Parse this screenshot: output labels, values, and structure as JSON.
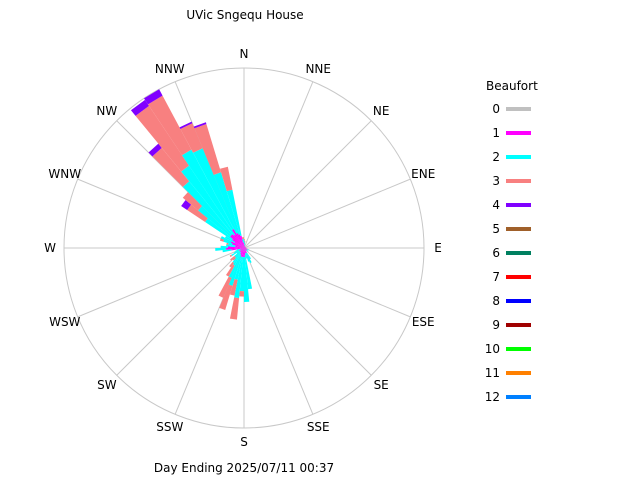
{
  "chart_data": {
    "type": "windrose",
    "title": "UVic Sngequ House",
    "footer": "Day Ending 2025/07/11 00:37",
    "directions": [
      "N",
      "NNE",
      "NE",
      "ENE",
      "E",
      "ESE",
      "SE",
      "SSE",
      "S",
      "SSW",
      "SW",
      "WSW",
      "W",
      "WNW",
      "NW",
      "NNW"
    ],
    "legend": {
      "title": "Beaufort",
      "classes": [
        {
          "label": "0",
          "color": "#c0c0c0"
        },
        {
          "label": "1",
          "color": "#ff00ff"
        },
        {
          "label": "2",
          "color": "#00ffff"
        },
        {
          "label": "3",
          "color": "#f88080"
        },
        {
          "label": "4",
          "color": "#8000ff"
        },
        {
          "label": "5",
          "color": "#a0602a"
        },
        {
          "label": "6",
          "color": "#008060"
        },
        {
          "label": "7",
          "color": "#ff0000"
        },
        {
          "label": "8",
          "color": "#0000ff"
        },
        {
          "label": "9",
          "color": "#a00000"
        },
        {
          "label": "10",
          "color": "#00ff00"
        },
        {
          "label": "11",
          "color": "#ff8000"
        },
        {
          "label": "12",
          "color": "#0080ff"
        }
      ]
    },
    "max_radius": 1.0,
    "bins_per_direction": 4,
    "note": "Each direction sector is subdivided into 4 sub-bins (offsets in degrees relative to the direction center). Each sub-bin gives cumulative radius (fraction of outer ring) for each Beaufort class 0..4.",
    "sub_bin_offsets": [
      -8.4375,
      -2.8125,
      2.8125,
      8.4375
    ],
    "sectors": [
      {
        "dir": "N",
        "bins": [
          [
            0,
            0.03,
            0.05,
            0.06,
            0.06
          ],
          [
            0,
            0.03,
            0.05,
            0.06,
            0.06
          ],
          [
            0,
            0.02,
            0.04,
            0.05,
            0.05
          ],
          [
            0,
            0.02,
            0.03,
            0.04,
            0.04
          ]
        ]
      },
      {
        "dir": "NNE",
        "bins": [
          [
            0,
            0.01,
            0.02,
            0.02,
            0.02
          ],
          [
            0,
            0.01,
            0.02,
            0.02,
            0.02
          ],
          [
            0,
            0.01,
            0.01,
            0.01,
            0.01
          ],
          [
            0,
            0.01,
            0.01,
            0.01,
            0.01
          ]
        ]
      },
      {
        "dir": "NE",
        "bins": [
          [
            0,
            0.01,
            0.01,
            0.01,
            0.01
          ],
          [
            0,
            0.01,
            0.01,
            0.01,
            0.01
          ],
          [
            0,
            0.01,
            0.01,
            0.01,
            0.01
          ],
          [
            0,
            0.01,
            0.01,
            0.01,
            0.01
          ]
        ]
      },
      {
        "dir": "ENE",
        "bins": [
          [
            0,
            0.01,
            0.01,
            0.01,
            0.01
          ],
          [
            0,
            0.01,
            0.01,
            0.01,
            0.01
          ],
          [
            0,
            0.01,
            0.01,
            0.01,
            0.01
          ],
          [
            0,
            0.01,
            0.01,
            0.01,
            0.01
          ]
        ]
      },
      {
        "dir": "E",
        "bins": [
          [
            0,
            0.01,
            0.01,
            0.01,
            0.01
          ],
          [
            0,
            0.01,
            0.01,
            0.01,
            0.01
          ],
          [
            0,
            0.01,
            0.01,
            0.01,
            0.01
          ],
          [
            0,
            0.01,
            0.01,
            0.01,
            0.01
          ]
        ]
      },
      {
        "dir": "ESE",
        "bins": [
          [
            0,
            0.02,
            0.02,
            0.02,
            0.02
          ],
          [
            0,
            0.02,
            0.03,
            0.03,
            0.03
          ],
          [
            0,
            0.02,
            0.02,
            0.02,
            0.02
          ],
          [
            0,
            0.01,
            0.02,
            0.02,
            0.02
          ]
        ]
      },
      {
        "dir": "SE",
        "bins": [
          [
            0,
            0.02,
            0.03,
            0.03,
            0.03
          ],
          [
            0,
            0.02,
            0.03,
            0.03,
            0.03
          ],
          [
            0,
            0.02,
            0.02,
            0.02,
            0.02
          ],
          [
            0,
            0.01,
            0.02,
            0.02,
            0.02
          ]
        ]
      },
      {
        "dir": "SSE",
        "bins": [
          [
            0,
            0.03,
            0.07,
            0.07,
            0.07
          ],
          [
            0,
            0.03,
            0.09,
            0.09,
            0.09
          ],
          [
            0,
            0.03,
            0.08,
            0.08,
            0.08
          ],
          [
            0,
            0.03,
            0.06,
            0.06,
            0.06
          ]
        ]
      },
      {
        "dir": "S",
        "bins": [
          [
            0,
            0.04,
            0.23,
            0.23,
            0.23
          ],
          [
            0,
            0.05,
            0.3,
            0.3,
            0.3
          ],
          [
            0,
            0.05,
            0.24,
            0.27,
            0.27
          ],
          [
            0,
            0.05,
            0.28,
            0.4,
            0.4
          ]
        ]
      },
      {
        "dir": "SSW",
        "bins": [
          [
            0,
            0.05,
            0.18,
            0.27,
            0.27
          ],
          [
            0,
            0.05,
            0.22,
            0.36,
            0.36
          ],
          [
            0,
            0.04,
            0.18,
            0.3,
            0.3
          ],
          [
            0,
            0.04,
            0.11,
            0.18,
            0.18
          ]
        ]
      },
      {
        "dir": "SW",
        "bins": [
          [
            0,
            0.03,
            0.1,
            0.13,
            0.13
          ],
          [
            0,
            0.03,
            0.07,
            0.09,
            0.09
          ],
          [
            0,
            0.03,
            0.07,
            0.1,
            0.1
          ],
          [
            0,
            0.02,
            0.05,
            0.05,
            0.05
          ]
        ]
      },
      {
        "dir": "WSW",
        "bins": [
          [
            0,
            0.03,
            0.08,
            0.09,
            0.09
          ],
          [
            0,
            0.03,
            0.06,
            0.06,
            0.06
          ],
          [
            0,
            0.02,
            0.05,
            0.05,
            0.05
          ],
          [
            0,
            0.02,
            0.04,
            0.04,
            0.04
          ]
        ]
      },
      {
        "dir": "W",
        "bins": [
          [
            0,
            0.07,
            0.12,
            0.12,
            0.12
          ],
          [
            0,
            0.1,
            0.16,
            0.16,
            0.16
          ],
          [
            0,
            0.09,
            0.13,
            0.13,
            0.13
          ],
          [
            0,
            0.05,
            0.1,
            0.1,
            0.1
          ]
        ]
      },
      {
        "dir": "WNW",
        "bins": [
          [
            0,
            0.05,
            0.09,
            0.1,
            0.1
          ],
          [
            0,
            0.07,
            0.12,
            0.14,
            0.14
          ],
          [
            0,
            0.08,
            0.14,
            0.14,
            0.14
          ],
          [
            0,
            0.06,
            0.12,
            0.12,
            0.12
          ]
        ]
      },
      {
        "dir": "NW",
        "bins": [
          [
            0,
            0.08,
            0.26,
            0.38,
            0.42
          ],
          [
            0,
            0.1,
            0.33,
            0.44,
            0.44
          ],
          [
            0,
            0.1,
            0.48,
            0.72,
            0.75
          ],
          [
            0,
            0.09,
            0.55,
            0.95,
            0.99
          ]
        ]
      },
      {
        "dir": "NNW",
        "bins": [
          [
            0,
            0.12,
            0.62,
            0.96,
            1.0
          ],
          [
            0,
            0.09,
            0.6,
            0.75,
            0.76
          ],
          [
            0,
            0.08,
            0.44,
            0.72,
            0.73
          ],
          [
            0,
            0.07,
            0.33,
            0.46,
            0.46
          ]
        ]
      }
    ]
  }
}
